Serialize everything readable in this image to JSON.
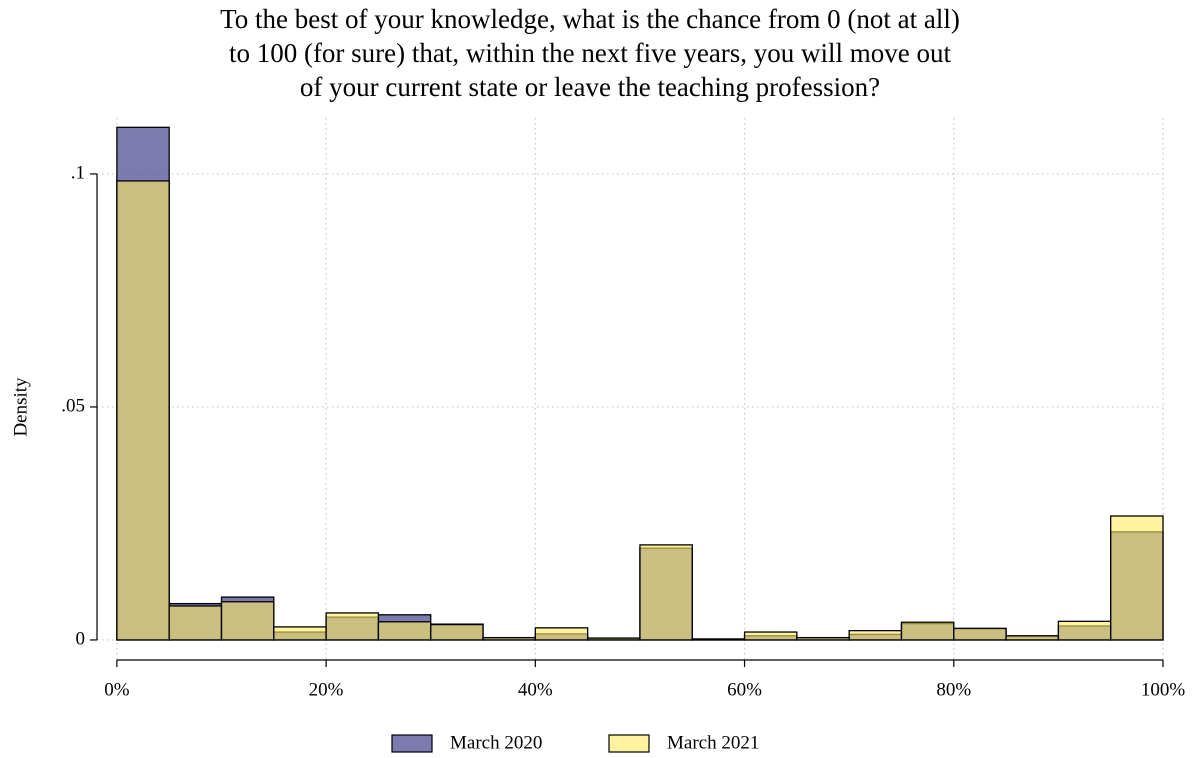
{
  "chart_data": {
    "type": "histogram",
    "title": [
      "To the best of your knowledge, what is the chance from 0 (not at all)",
      "to 100 (for sure) that, within the next five years, you will move out",
      "of your current state or leave the teaching profession?"
    ],
    "ylabel": "Density",
    "bins": [
      0,
      5,
      10,
      15,
      20,
      25,
      30,
      35,
      40,
      45,
      50,
      55,
      60,
      65,
      70,
      75,
      80,
      85,
      90,
      95,
      100
    ],
    "series": [
      {
        "name": "March 2020",
        "color": "#4f4f94",
        "values": [
          0.11,
          0.0078,
          0.0092,
          0.0017,
          0.0049,
          0.0054,
          0.0034,
          0.0005,
          0.0013,
          0.0004,
          0.0197,
          0.0002,
          0.0009,
          0.0005,
          0.0012,
          0.0035,
          0.0024,
          0.0008,
          0.003,
          0.0232
        ]
      },
      {
        "name": "March 2021",
        "color": "#ffeb61",
        "values": [
          0.0985,
          0.0073,
          0.0082,
          0.0028,
          0.0058,
          0.0039,
          0.0033,
          0.0005,
          0.0026,
          0.0004,
          0.0204,
          0.0002,
          0.0017,
          0.0005,
          0.002,
          0.0038,
          0.0025,
          0.0009,
          0.004,
          0.0266
        ]
      }
    ],
    "xlim": [
      -1.9,
      100
    ],
    "ylim": [
      -0.0043,
      0.112
    ],
    "xticks": [
      {
        "value": 0,
        "label": "0%"
      },
      {
        "value": 20,
        "label": "20%"
      },
      {
        "value": 40,
        "label": "40%"
      },
      {
        "value": 60,
        "label": "60%"
      },
      {
        "value": 80,
        "label": "80%"
      },
      {
        "value": 100,
        "label": "100%"
      }
    ],
    "yticks": [
      0,
      {
        "value": 0.05,
        "label": ".05"
      },
      {
        "value": 0.1,
        "label": ".1"
      }
    ],
    "grid": true,
    "legend": "bottom"
  }
}
